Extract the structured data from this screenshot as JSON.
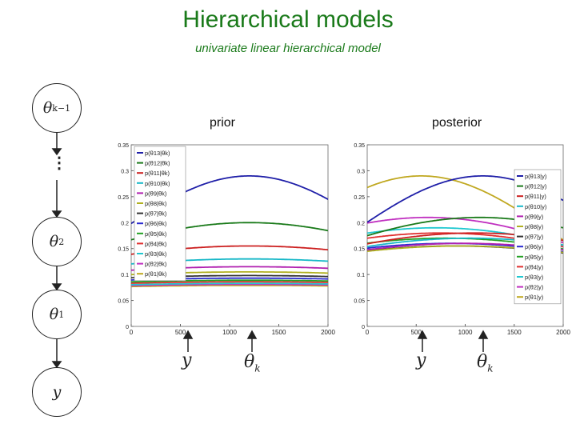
{
  "title": "Hierarchical models",
  "subtitle": "univariate linear hierarchical model",
  "panel_titles": {
    "prior": "prior",
    "posterior": "posterior"
  },
  "colors": {
    "title": "#1a7a1a"
  },
  "graph": {
    "nodes": [
      {
        "symbol": "θ",
        "sub": "k−1"
      },
      {
        "symbol": "θ",
        "sub": "2"
      },
      {
        "symbol": "θ",
        "sub": "1"
      },
      {
        "symbol": "y",
        "sub": ""
      }
    ],
    "ellipsis": "⋮"
  },
  "annotations": {
    "y": "y",
    "theta": "θ",
    "theta_sub": "k"
  },
  "chart_data": [
    {
      "type": "line",
      "title": "prior",
      "xlim": [
        0,
        2000
      ],
      "ylim": [
        0,
        0.35
      ],
      "xticks": [
        0,
        500,
        1000,
        1500,
        2000
      ],
      "yticks": [
        0,
        0.05,
        0.1,
        0.15,
        0.2,
        0.25,
        0.3,
        0.35
      ],
      "ytick_labels": [
        "0",
        "0.05",
        "0.1",
        "0.15",
        "0.2",
        "0.25",
        "0.3",
        "0.35"
      ],
      "grid": false,
      "legend_position": "top-left",
      "series": [
        {
          "name": "p(θ13|θk)",
          "color": "#1f1fa8",
          "mean": 1200,
          "peak": 0.29
        },
        {
          "name": "p(θ12|θk)",
          "color": "#1a7a1a",
          "mean": 1200,
          "peak": 0.2
        },
        {
          "name": "p(θ11|θk)",
          "color": "#cc2020",
          "mean": 1200,
          "peak": 0.155
        },
        {
          "name": "p(θ10|θk)",
          "color": "#18b8c8",
          "mean": 1200,
          "peak": 0.13
        },
        {
          "name": "p(θ9|θk)",
          "color": "#b020b0",
          "mean": 1200,
          "peak": 0.115
        },
        {
          "name": "p(θ8|θk)",
          "color": "#b0b020",
          "mean": 1200,
          "peak": 0.105
        },
        {
          "name": "p(θ7|θk)",
          "color": "#333333",
          "mean": 1200,
          "peak": 0.098
        },
        {
          "name": "p(θ6|θk)",
          "color": "#2a2ad0",
          "mean": 1200,
          "peak": 0.093
        },
        {
          "name": "p(θ5|θk)",
          "color": "#23a023",
          "mean": 1200,
          "peak": 0.089
        },
        {
          "name": "p(θ4|θk)",
          "color": "#e03030",
          "mean": 1200,
          "peak": 0.086
        },
        {
          "name": "p(θ3|θk)",
          "color": "#20c8d0",
          "mean": 1200,
          "peak": 0.083
        },
        {
          "name": "p(θ2|θk)",
          "color": "#c030c0",
          "mean": 1200,
          "peak": 0.081
        },
        {
          "name": "p(θ1|θk)",
          "color": "#c0a820",
          "mean": 1200,
          "peak": 0.079
        }
      ]
    },
    {
      "type": "line",
      "title": "posterior",
      "xlim": [
        0,
        2000
      ],
      "ylim": [
        0,
        0.35
      ],
      "xticks": [
        0,
        500,
        1000,
        1500,
        2000
      ],
      "yticks": [
        0,
        0.05,
        0.1,
        0.15,
        0.2,
        0.25,
        0.3,
        0.35
      ],
      "ytick_labels": [
        "0",
        "0.05",
        "0.1",
        "0.15",
        "0.2",
        "0.25",
        "0.3",
        "0.35"
      ],
      "grid": false,
      "legend_position": "top-right",
      "series": [
        {
          "name": "p(θ13|y)",
          "color": "#1f1fa8",
          "mean": 1180,
          "peak": 0.29
        },
        {
          "name": "p(θ12|y)",
          "color": "#1a7a1a",
          "mean": 1150,
          "peak": 0.21
        },
        {
          "name": "p(θ11|y)",
          "color": "#cc2020",
          "mean": 1100,
          "peak": 0.18
        },
        {
          "name": "p(θ10|y)",
          "color": "#18b8c8",
          "mean": 1050,
          "peak": 0.17
        },
        {
          "name": "p(θ9|y)",
          "color": "#b020b0",
          "mean": 1000,
          "peak": 0.16
        },
        {
          "name": "p(θ8|y)",
          "color": "#b0b020",
          "mean": 950,
          "peak": 0.155
        },
        {
          "name": "p(θ7|y)",
          "color": "#333333",
          "mean": 900,
          "peak": 0.155
        },
        {
          "name": "p(θ6|y)",
          "color": "#2a2ad0",
          "mean": 850,
          "peak": 0.16
        },
        {
          "name": "p(θ5|y)",
          "color": "#23a023",
          "mean": 800,
          "peak": 0.17
        },
        {
          "name": "p(θ4|y)",
          "color": "#e03030",
          "mean": 750,
          "peak": 0.18
        },
        {
          "name": "p(θ3|y)",
          "color": "#20c8d0",
          "mean": 700,
          "peak": 0.19
        },
        {
          "name": "p(θ2|y)",
          "color": "#c030c0",
          "mean": 620,
          "peak": 0.21
        },
        {
          "name": "p(θ1|y)",
          "color": "#c0a820",
          "mean": 550,
          "peak": 0.29
        }
      ]
    }
  ]
}
